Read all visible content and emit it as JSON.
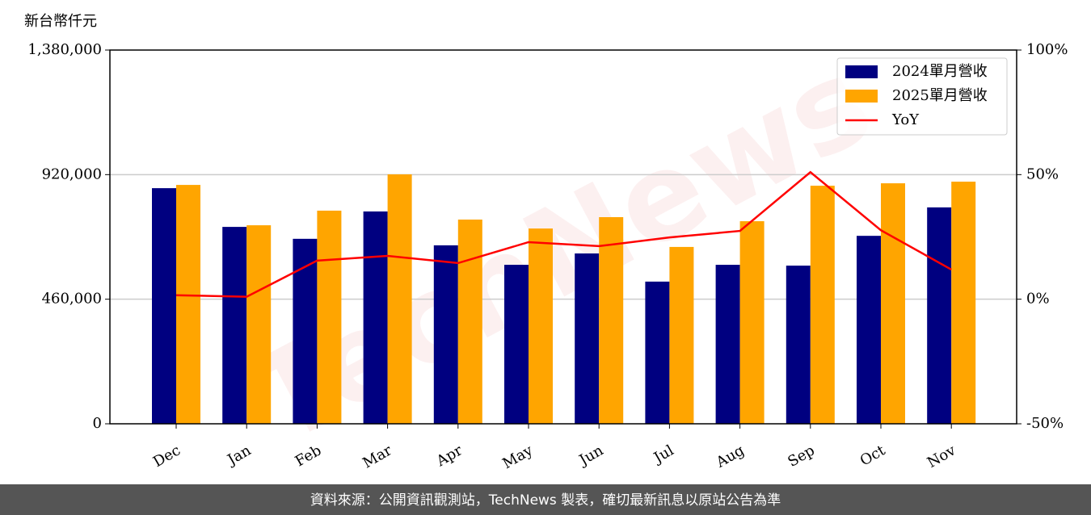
{
  "chart_data": {
    "type": "bar_line",
    "y_label": "新台幣仟元",
    "categories": [
      "Dec",
      "Jan",
      "Feb",
      "Mar",
      "Apr",
      "May",
      "Jun",
      "Jul",
      "Aug",
      "Sep",
      "Oct",
      "Nov"
    ],
    "series": [
      {
        "name": "2024單月營收",
        "color": "#000080",
        "type": "bar",
        "values": [
          870000,
          727000,
          683000,
          784000,
          659000,
          587000,
          629000,
          525000,
          587000,
          584000,
          694000,
          799000
        ]
      },
      {
        "name": "2025單月營收",
        "color": "#ffa500",
        "type": "bar",
        "values": [
          882000,
          733000,
          787000,
          921000,
          754000,
          721000,
          763000,
          653000,
          748000,
          879000,
          888000,
          894000
        ]
      },
      {
        "name": "YoY",
        "color": "#ff0000",
        "type": "line",
        "axis": "y2",
        "values": [
          1.6,
          1.0,
          15.5,
          17.4,
          14.5,
          22.9,
          21.3,
          24.8,
          27.4,
          51.0,
          27.7,
          11.9
        ]
      }
    ],
    "ylim": [
      0,
      1380000
    ],
    "yticks": [
      0,
      {
        "value": 460000,
        "label": "460,000"
      },
      {
        "value": 920000,
        "label": "920,000"
      },
      {
        "value": 1380000,
        "label": "1,380,000"
      }
    ],
    "y2lim": [
      -50,
      100
    ],
    "y2ticks": [
      {
        "value": -50,
        "label": "-50%"
      },
      {
        "value": 0,
        "label": "0%"
      },
      {
        "value": 50,
        "label": "50%"
      },
      {
        "value": 100,
        "label": "100%"
      }
    ],
    "grid": true,
    "legend": "upper right",
    "watermark": "TechNews",
    "footer": "資料來源：公開資訊觀測站，TechNews 製表，確切最新訊息以原站公告為準"
  }
}
